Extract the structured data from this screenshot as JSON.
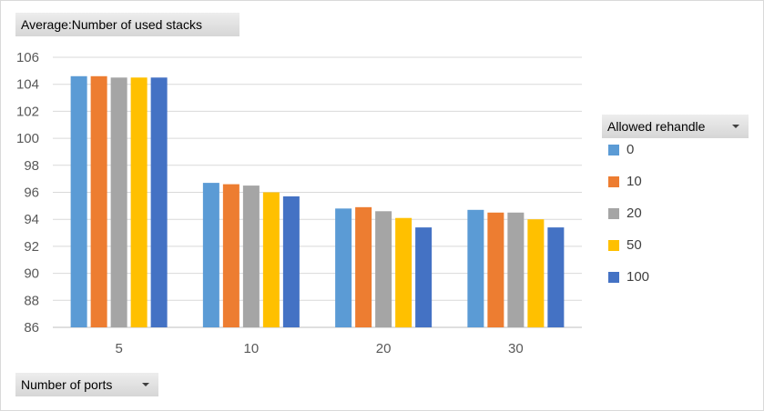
{
  "value_field": {
    "label": "Average:Number of used stacks"
  },
  "legend_field": {
    "label": "Allowed rehandle"
  },
  "axis_field": {
    "label": "Number of ports"
  },
  "colors": {
    "0": "#5b9bd5",
    "10": "#ed7d31",
    "20": "#a5a5a5",
    "50": "#ffc000",
    "100": "#4472c4"
  },
  "chart_data": {
    "type": "bar",
    "categories": [
      "5",
      "10",
      "20",
      "30"
    ],
    "series": [
      {
        "name": "0",
        "values": [
          104.6,
          96.7,
          94.8,
          94.7
        ],
        "color": "#5b9bd5"
      },
      {
        "name": "10",
        "values": [
          104.6,
          96.6,
          94.9,
          94.5
        ],
        "color": "#ed7d31"
      },
      {
        "name": "20",
        "values": [
          104.5,
          96.5,
          94.6,
          94.5
        ],
        "color": "#a5a5a5"
      },
      {
        "name": "50",
        "values": [
          104.5,
          96.0,
          94.1,
          94.0
        ],
        "color": "#ffc000"
      },
      {
        "name": "100",
        "values": [
          104.5,
          95.7,
          93.4,
          93.4
        ],
        "color": "#4472c4"
      }
    ],
    "ylim": [
      86,
      106
    ],
    "yticks": [
      "86",
      "88",
      "90",
      "92",
      "94",
      "96",
      "98",
      "100",
      "102",
      "104",
      "106"
    ],
    "grid": true,
    "legend_placement": "right"
  }
}
